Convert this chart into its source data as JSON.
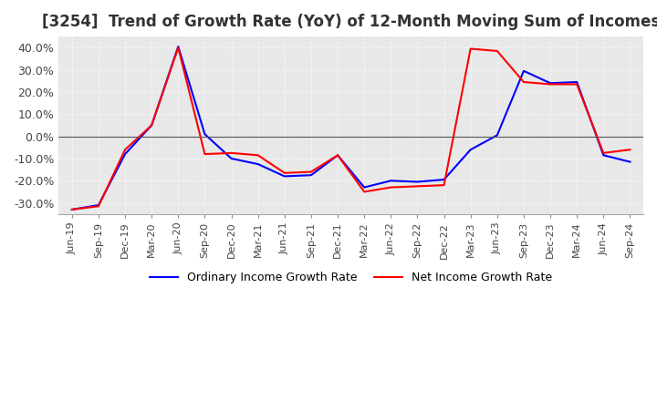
{
  "title": "[3254]  Trend of Growth Rate (YoY) of 12-Month Moving Sum of Incomes",
  "title_fontsize": 12,
  "ylim": [
    -0.35,
    0.45
  ],
  "yticks": [
    -0.3,
    -0.2,
    -0.1,
    0.0,
    0.1,
    0.2,
    0.3,
    0.4
  ],
  "background_color": "#ffffff",
  "plot_bg_color": "#e8e8e8",
  "grid_color": "#ffffff",
  "ordinary_color": "#0000ff",
  "net_color": "#ff0000",
  "legend_labels": [
    "Ordinary Income Growth Rate",
    "Net Income Growth Rate"
  ],
  "x_labels": [
    "Jun-19",
    "Sep-19",
    "Dec-19",
    "Mar-20",
    "Jun-20",
    "Sep-20",
    "Dec-20",
    "Mar-21",
    "Jun-21",
    "Sep-21",
    "Dec-21",
    "Mar-22",
    "Jun-22",
    "Sep-22",
    "Dec-22",
    "Mar-23",
    "Jun-23",
    "Sep-23",
    "Dec-23",
    "Mar-24",
    "Jun-24",
    "Sep-24"
  ],
  "ordinary_values": [
    -0.33,
    -0.31,
    -0.08,
    0.05,
    0.405,
    0.01,
    -0.1,
    -0.125,
    -0.18,
    -0.175,
    -0.085,
    -0.23,
    -0.2,
    -0.205,
    -0.195,
    -0.06,
    0.005,
    0.295,
    0.24,
    0.245,
    -0.085,
    -0.115
  ],
  "net_values": [
    -0.33,
    -0.315,
    -0.06,
    0.05,
    0.4,
    -0.08,
    -0.075,
    -0.085,
    -0.165,
    -0.16,
    -0.085,
    -0.25,
    -0.23,
    -0.225,
    -0.22,
    0.395,
    0.385,
    0.245,
    0.235,
    0.235,
    -0.075,
    -0.06
  ]
}
